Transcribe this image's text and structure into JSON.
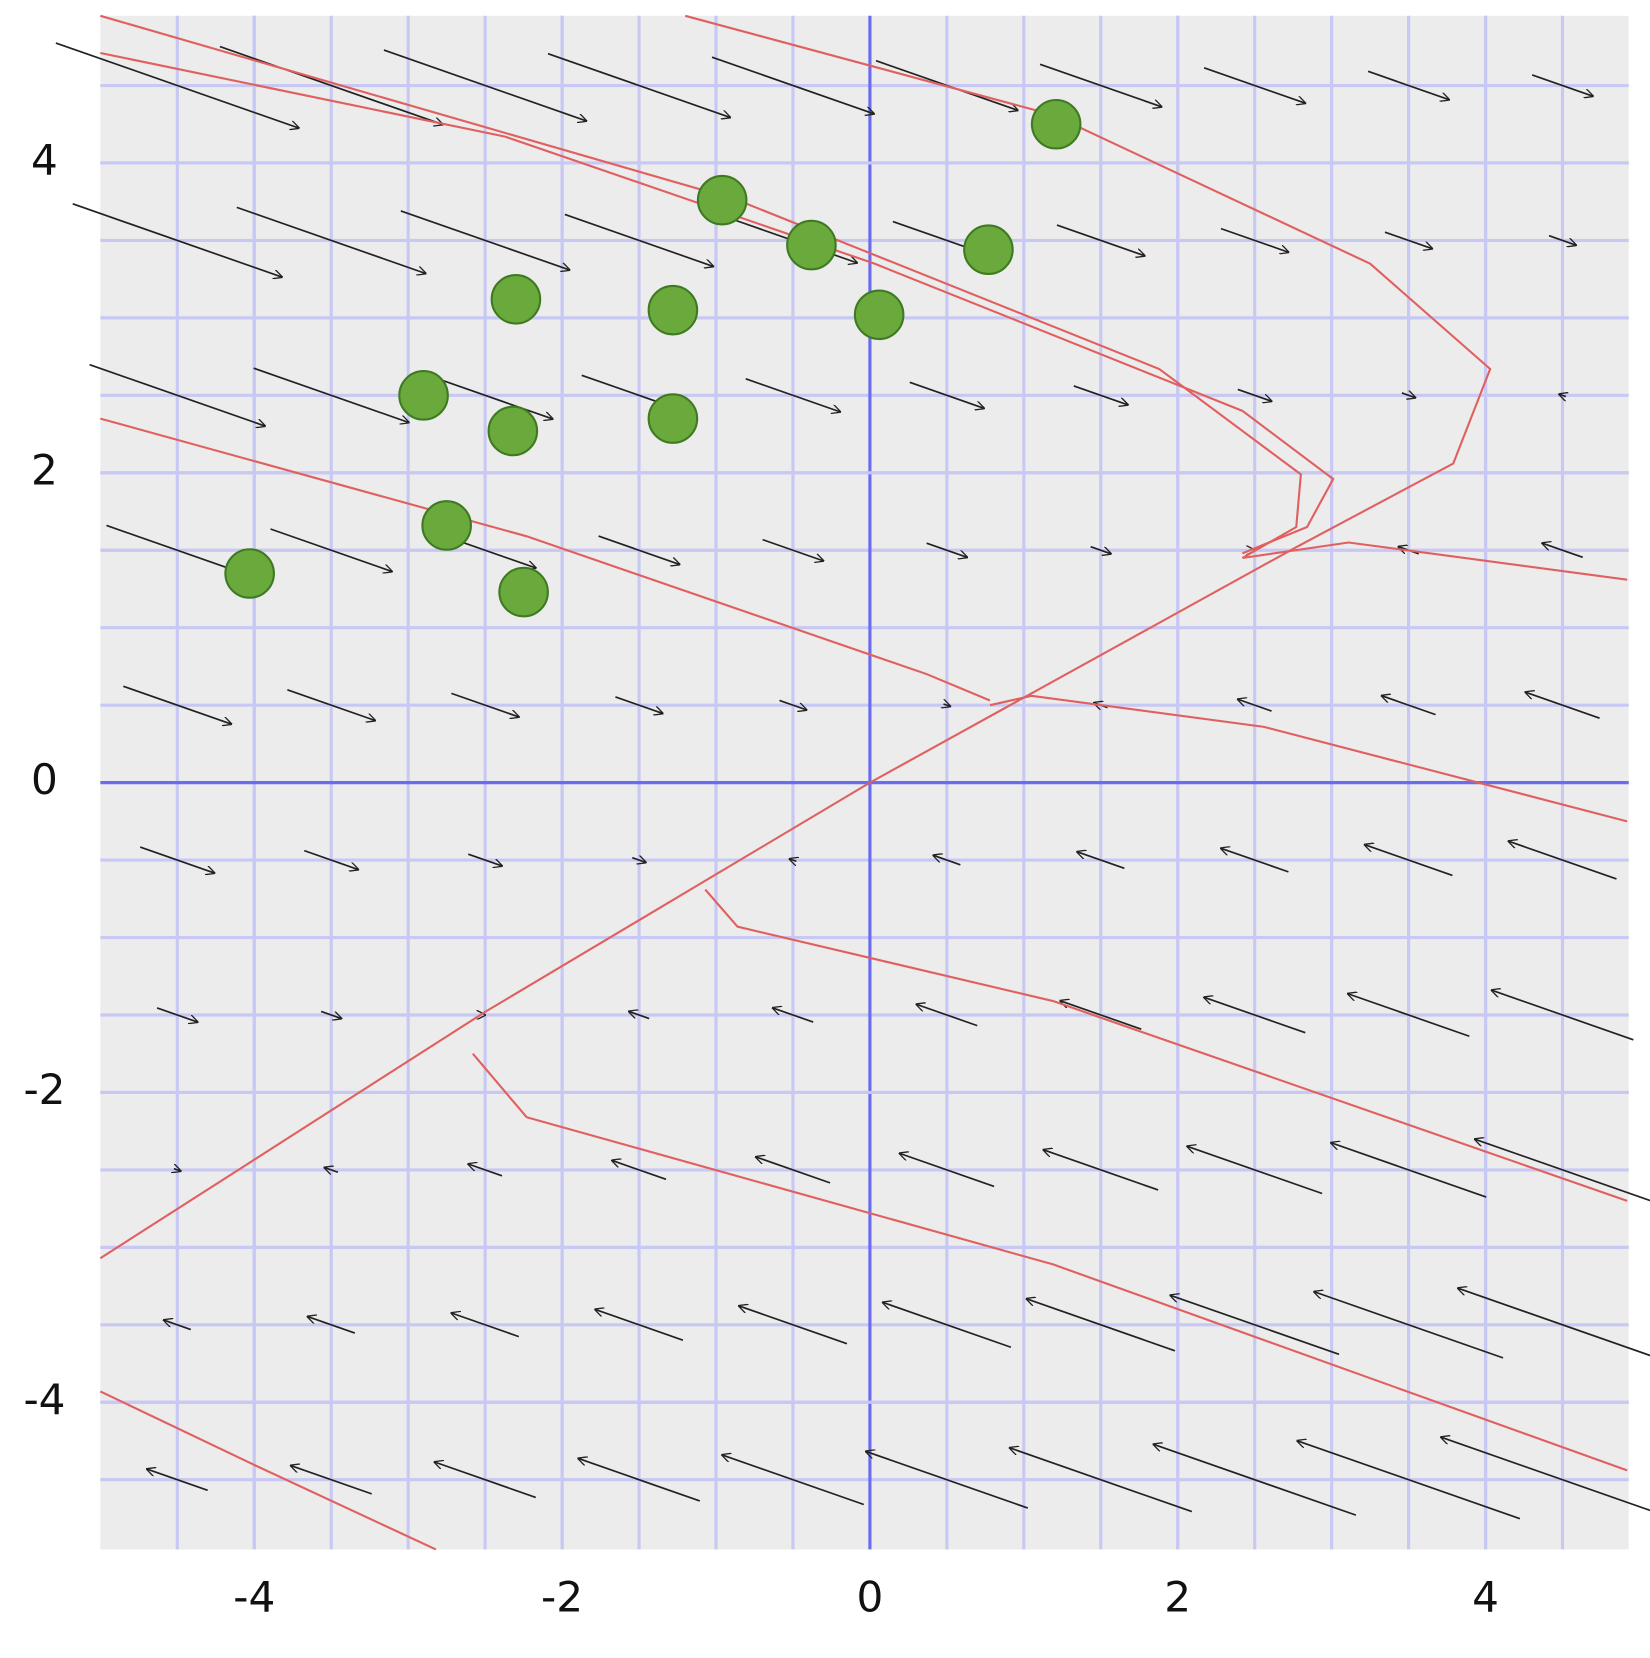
{
  "chart_data": {
    "type": "scatter",
    "xlim": [
      -5,
      4.93
    ],
    "ylim": [
      -4.95,
      4.95
    ],
    "xticks": [
      -4,
      -2,
      0,
      2,
      4
    ],
    "yticks": [
      -4,
      -2,
      0,
      2,
      4
    ],
    "xgrid": [
      -4.5,
      -4,
      -3.5,
      -3,
      -2.5,
      -2,
      -1.5,
      -1,
      -0.5,
      0.5,
      1,
      1.5,
      2,
      2.5,
      3,
      3.5,
      4,
      4.5
    ],
    "ygrid": [
      -4.5,
      -4,
      -3.5,
      -3,
      -2.5,
      -2,
      -1.5,
      -1,
      -0.5,
      0.5,
      1,
      1.5,
      2,
      2.5,
      3,
      3.5,
      4,
      4.5
    ],
    "series": [
      {
        "color": "#6aaa3c",
        "x": [
          1.21,
          -0.96,
          -0.38,
          0.77,
          -2.3,
          -1.28,
          0.06,
          -2.9,
          -2.32,
          -1.28,
          -2.75,
          -4.03,
          -2.25
        ],
        "values": [
          4.25,
          3.76,
          3.47,
          3.44,
          3.12,
          3.05,
          3.02,
          2.5,
          2.27,
          2.35,
          1.66,
          1.35,
          1.23
        ]
      }
    ],
    "curves": {
      "color": "#e06060",
      "lines": [
        {
          "x": [
            -1.2,
            1.19,
            3.25,
            4.03,
            3.79,
            2.77,
            0,
            -2.5,
            -5
          ],
          "y": [
            4.95,
            4.31,
            3.35,
            2.67,
            2.06,
            1.52,
            0,
            -1.48,
            -3.07
          ]
        },
        {
          "x": [
            -5,
            -2.37,
            0.03,
            2.42,
            3.01,
            2.84,
            2.42
          ],
          "y": [
            4.71,
            4.17,
            3.35,
            2.4,
            1.96,
            1.65,
            1.48
          ]
        },
        {
          "x": [
            -5,
            -0.86,
            1.88,
            2.8,
            2.77,
            2.42
          ],
          "y": [
            4.95,
            3.76,
            2.67,
            1.99,
            1.65,
            1.45
          ]
        },
        {
          "x": [
            -5,
            -2.23,
            0.37,
            0.78
          ],
          "y": [
            2.35,
            1.59,
            0.7,
            0.53
          ]
        },
        {
          "x": [
            4.92,
            3.11,
            2.42
          ],
          "y": [
            1.31,
            1.55,
            1.45
          ]
        },
        {
          "x": [
            4.92,
            2.56,
            1.05,
            0.78
          ],
          "y": [
            -0.25,
            0.36,
            0.56,
            0.5
          ]
        },
        {
          "x": [
            -1.07,
            -0.86,
            1.19,
            4.92
          ],
          "y": [
            -0.69,
            -0.93,
            -1.41,
            -2.7
          ]
        },
        {
          "x": [
            -2.58,
            -2.23,
            1.19,
            4.92
          ],
          "y": [
            -1.75,
            -2.16,
            -3.11,
            -4.44
          ]
        },
        {
          "x": [
            -5,
            -4.01,
            -2.82
          ],
          "y": [
            -3.93,
            -4.4,
            -4.95
          ]
        }
      ]
    },
    "field": {
      "x": [
        -4.5,
        -3.5,
        -2.5,
        -1.5,
        -0.5,
        0.5,
        1.5,
        2.5,
        3.5,
        4.5
      ],
      "y": [
        -4.5,
        -3.5,
        -2.5,
        -1.5,
        -0.5,
        0.5,
        1.5,
        2.5,
        3.5,
        4.5
      ],
      "u": [
        [
          -1.8,
          -2.4,
          -3.0,
          -3.6,
          -4.2,
          -4.8,
          -5.4,
          -6.0,
          -6.6,
          -7.2
        ],
        [
          -0.8,
          -1.4,
          -2.0,
          -2.6,
          -3.2,
          -3.8,
          -4.4,
          -5.0,
          -5.6,
          -6.2
        ],
        [
          0.2,
          -0.4,
          -1.0,
          -1.6,
          -2.2,
          -2.8,
          -3.4,
          -4.0,
          -4.6,
          -5.2
        ],
        [
          1.2,
          0.6,
          0,
          -0.6,
          -1.2,
          -1.8,
          -2.4,
          -3.0,
          -3.6,
          -4.2
        ],
        [
          2.2,
          1.6,
          1.0,
          0.4,
          -0.2,
          -0.8,
          -1.4,
          -2.0,
          -2.6,
          -3.2
        ],
        [
          3.2,
          2.6,
          2.0,
          1.4,
          0.8,
          0.2,
          -0.4,
          -1.0,
          -1.6,
          -2.2
        ],
        [
          4.2,
          3.6,
          3.0,
          2.4,
          1.8,
          1.2,
          0.6,
          0,
          -0.6,
          -1.2
        ],
        [
          5.2,
          4.6,
          4.0,
          3.4,
          2.8,
          2.2,
          1.6,
          1.0,
          0.4,
          -0.2
        ],
        [
          6.2,
          5.6,
          5.0,
          4.4,
          3.8,
          3.2,
          2.6,
          2.0,
          1.4,
          0.8
        ],
        [
          7.2,
          6.6,
          6.0,
          5.4,
          4.8,
          4.2,
          3.6,
          3.0,
          2.4,
          1.8
        ]
      ],
      "v": [
        [
          0.63,
          0.84,
          1.05,
          1.26,
          1.47,
          1.68,
          1.89,
          2.1,
          2.31,
          2.52
        ],
        [
          0.28,
          0.49,
          0.7,
          0.91,
          1.12,
          1.33,
          1.54,
          1.75,
          1.96,
          2.17
        ],
        [
          -0.07,
          0.14,
          0.35,
          0.56,
          0.77,
          0.98,
          1.19,
          1.4,
          1.61,
          1.82
        ],
        [
          -0.42,
          -0.21,
          0,
          0.21,
          0.42,
          0.63,
          0.84,
          1.05,
          1.26,
          1.47
        ],
        [
          -0.77,
          -0.56,
          -0.35,
          -0.14,
          0.07,
          0.28,
          0.49,
          0.7,
          0.91,
          1.12
        ],
        [
          -1.12,
          -0.91,
          -0.7,
          -0.49,
          -0.28,
          -0.07,
          0.14,
          0.35,
          0.56,
          0.77
        ],
        [
          -1.47,
          -1.26,
          -1.05,
          -0.84,
          -0.63,
          -0.42,
          -0.21,
          0,
          0.21,
          0.42
        ],
        [
          -1.82,
          -1.61,
          -1.4,
          -1.19,
          -0.98,
          -0.77,
          -0.56,
          -0.35,
          -0.14,
          0.07
        ],
        [
          -2.17,
          -1.96,
          -1.75,
          -1.54,
          -1.33,
          -1.12,
          -0.91,
          -0.7,
          -0.49,
          -0.28
        ],
        [
          -2.52,
          -2.31,
          -2.1,
          -1.89,
          -1.68,
          -1.47,
          -1.26,
          -1.05,
          -0.84,
          -0.63
        ]
      ]
    }
  }
}
